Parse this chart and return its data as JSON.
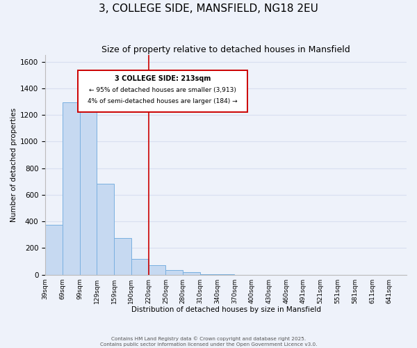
{
  "title": "3, COLLEGE SIDE, MANSFIELD, NG18 2EU",
  "subtitle": "Size of property relative to detached houses in Mansfield",
  "xlabel": "Distribution of detached houses by size in Mansfield",
  "ylabel": "Number of detached properties",
  "bin_labels": [
    "39sqm",
    "69sqm",
    "99sqm",
    "129sqm",
    "159sqm",
    "190sqm",
    "220sqm",
    "250sqm",
    "280sqm",
    "310sqm",
    "340sqm",
    "370sqm",
    "400sqm",
    "430sqm",
    "460sqm",
    "491sqm",
    "521sqm",
    "551sqm",
    "581sqm",
    "611sqm",
    "641sqm"
  ],
  "bar_values": [
    375,
    1295,
    1230,
    685,
    275,
    120,
    70,
    35,
    20,
    5,
    2,
    0,
    0,
    0,
    0,
    0,
    0,
    0,
    0,
    0,
    0
  ],
  "bar_color": "#c6d9f1",
  "bar_edge_color": "#7ab0e0",
  "ylim": [
    0,
    1650
  ],
  "yticks": [
    0,
    200,
    400,
    600,
    800,
    1000,
    1200,
    1400,
    1600
  ],
  "red_line_x": 6,
  "annotation_text_line1": "3 COLLEGE SIDE: 213sqm",
  "annotation_text_line2": "← 95% of detached houses are smaller (3,913)",
  "annotation_text_line3": "4% of semi-detached houses are larger (184) →",
  "annotation_box_color": "#ffffff",
  "annotation_box_edge_color": "#cc0000",
  "footer_line1": "Contains HM Land Registry data © Crown copyright and database right 2025.",
  "footer_line2": "Contains public sector information licensed under the Open Government Licence v3.0.",
  "background_color": "#eef2fa",
  "grid_color": "#d8dff0",
  "title_fontsize": 11,
  "subtitle_fontsize": 9
}
